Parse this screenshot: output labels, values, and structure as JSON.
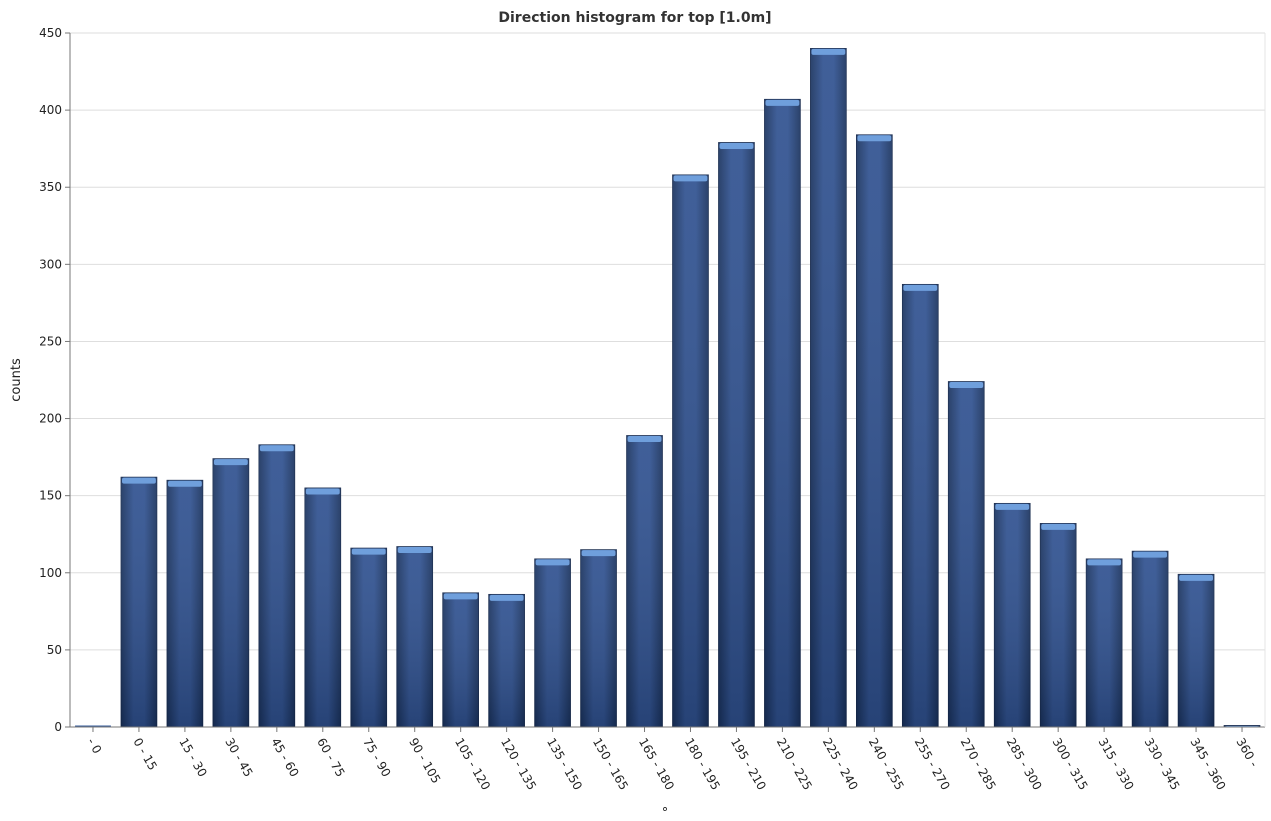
{
  "chart_data": {
    "type": "bar",
    "title": "Direction histogram for top [1.0m]",
    "xlabel": "°",
    "ylabel": "counts",
    "categories": [
      "- 0",
      "0 - 15",
      "15 - 30",
      "30 - 45",
      "45 - 60",
      "60 - 75",
      "75 - 90",
      "90 - 105",
      "105 - 120",
      "120 - 135",
      "135 - 150",
      "150 - 165",
      "165 - 180",
      "180 - 195",
      "195 - 210",
      "210 - 225",
      "225 - 240",
      "240 - 255",
      "255 - 270",
      "270 - 285",
      "285 - 300",
      "300 - 315",
      "315 - 330",
      "330 - 345",
      "345 - 360",
      "360 -"
    ],
    "values": [
      0,
      162,
      160,
      174,
      183,
      155,
      116,
      117,
      87,
      86,
      109,
      115,
      189,
      358,
      379,
      407,
      440,
      384,
      287,
      224,
      145,
      132,
      109,
      114,
      99,
      1
    ],
    "ylim": [
      0,
      450
    ],
    "yticks": [
      0,
      50,
      100,
      150,
      200,
      250,
      300,
      350,
      400,
      450
    ],
    "grid": true,
    "legend": "none",
    "colors": {
      "bar_dark": "#1f3a6b",
      "bar_light": "#3a5f9e",
      "bar_top": "#6f9fdc"
    }
  }
}
